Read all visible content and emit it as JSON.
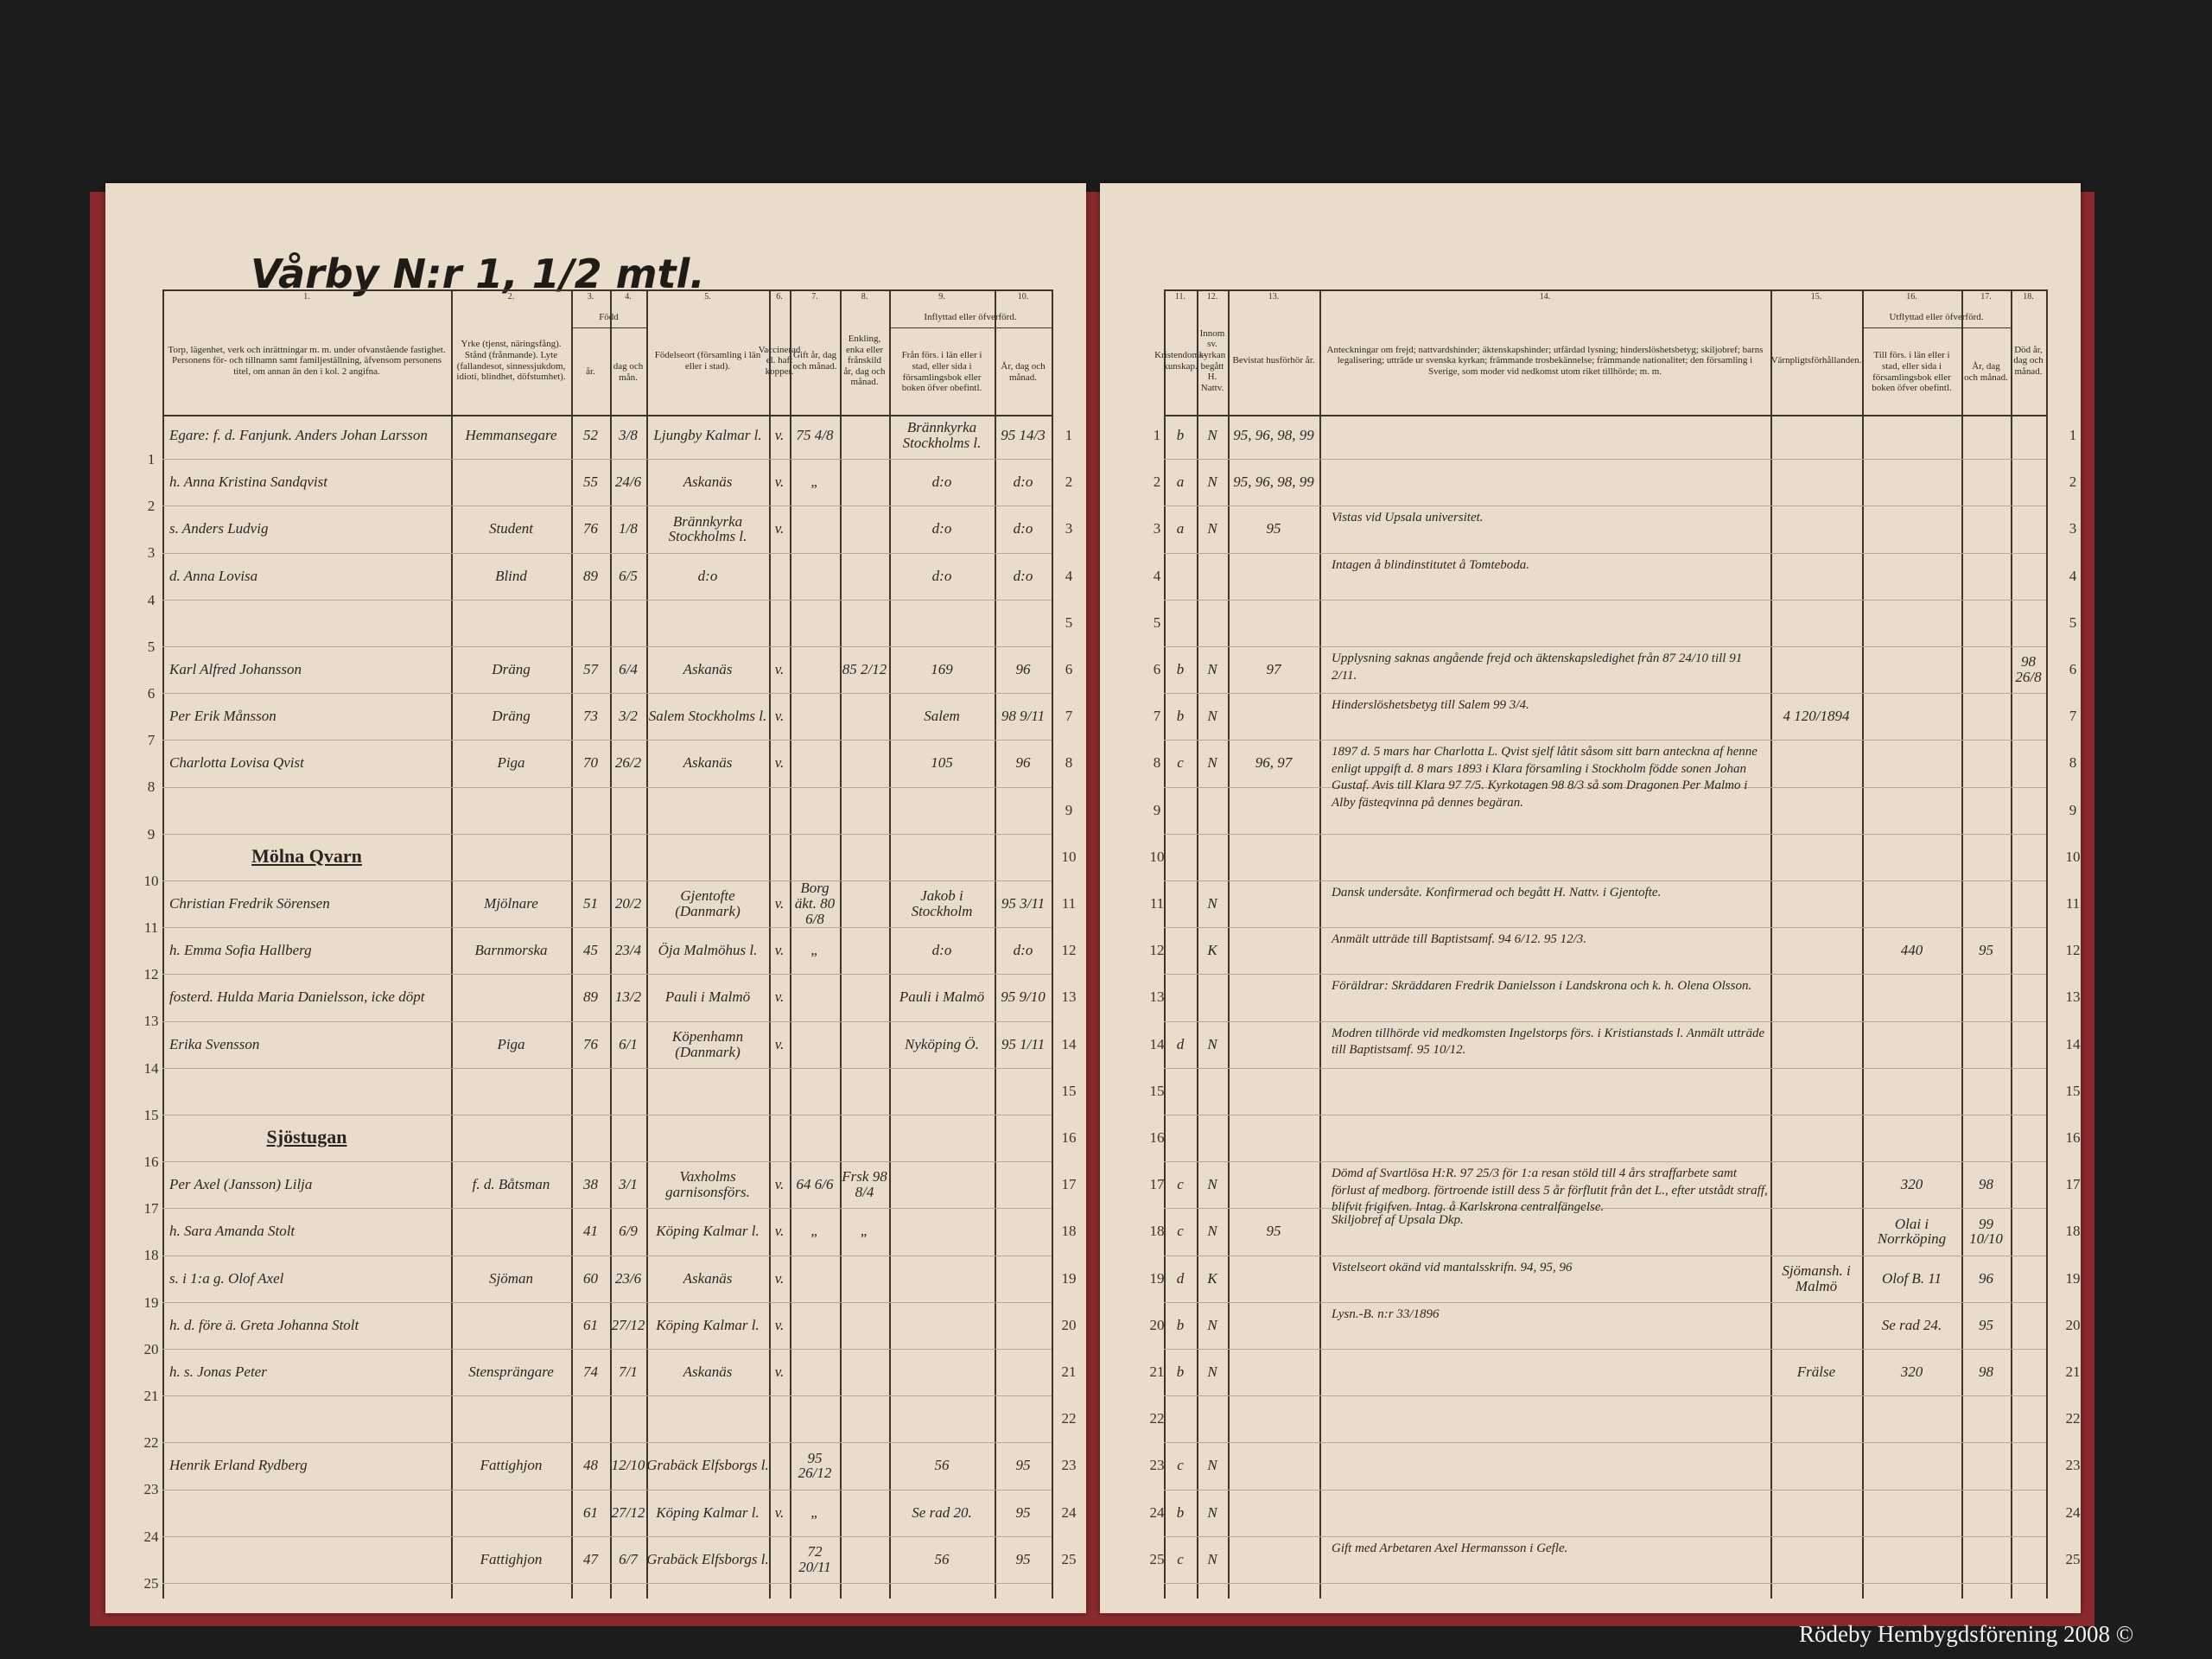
{
  "header": {
    "title": "Vårby N:r 1, 1/2 mtl."
  },
  "left_columns": [
    {
      "number": "1.",
      "label": "Torp, lägenhet, verk och inrättningar m. m. under ofvanstående fastighet. Personens för- och tillnamn samt familjeställning, äfvensom personens titel, om annan än den i kol. 2 angifna."
    },
    {
      "number": "2.",
      "label": "Yrke (tjenst, näringsfång). Stånd (frånmande). Lyte (fallandesot, sinnessjukdom, idioti, blindhet, döfstumhet)."
    },
    {
      "number": "3.",
      "group": "Född",
      "label": "år."
    },
    {
      "number": "4.",
      "label": "dag och mån."
    },
    {
      "number": "5.",
      "label": "Födelseort (församling i län eller i stad)."
    },
    {
      "number": "6.",
      "label": "Vaccinerad el. haft kopper."
    },
    {
      "number": "7.",
      "label": "Gift år, dag och månad."
    },
    {
      "number": "8.",
      "label": "Enkling, enka eller frånskild år, dag och månad."
    },
    {
      "number": "9.",
      "group": "Inflyttad eller öfverförd.",
      "label": "Från förs. i län eller i stad, eller sida i församlingsbok eller boken öfver obefintl."
    },
    {
      "number": "10.",
      "label": "År, dag och månad."
    }
  ],
  "right_columns": [
    {
      "number": "11.",
      "label": "Kristendoms-kunskap."
    },
    {
      "number": "12.",
      "label": "Innom sv. kyrkan begått H. Nattv."
    },
    {
      "number": "13.",
      "label": "Bevistat husförhör år."
    },
    {
      "number": "14.",
      "label": "Anteckningar om frejd; nattvardshinder; äktenskapshinder; utfärdad lysning; hinderslöshetsbetyg; skiljobref; barns legalisering; utträde ur svenska kyrkan; främmande trosbekännelse; främmande nationalitet; den församling i Sverige, som moder vid nedkomst utom riket tillhörde; m. m."
    },
    {
      "number": "15.",
      "label": "Värnpligtsförhållanden."
    },
    {
      "number": "16.",
      "group": "Utflyttad eller öfverförd.",
      "label": "Till förs. i län eller i stad, eller sida i församlingsbok eller boken öfver obefintl."
    },
    {
      "number": "17.",
      "label": "År, dag och månad."
    },
    {
      "number": "18.",
      "label": "Död år, dag och månad."
    }
  ],
  "rows": [
    {
      "number": "1",
      "name": "Egare: f. d. Fanjunk. Anders Johan Larsson",
      "occupation": "Hemmansegare",
      "year": "52",
      "day": "3/8",
      "birthplace": "Ljungby Kalmar l.",
      "vaccinated": "v.",
      "married": "75 4/8",
      "moved_from": "Brännkyrka Stockholms l.",
      "moved_date": "95 14/3",
      "catechism": "b",
      "communion": "N",
      "hearings": "95, 96, 98, 99"
    },
    {
      "number": "2",
      "name": "h. Anna Kristina Sandqvist",
      "year": "55",
      "day": "24/6",
      "birthplace": "Askanäs",
      "vaccinated": "v.",
      "married": "„",
      "moved_from": "d:o",
      "moved_date": "d:o",
      "catechism": "a",
      "communion": "N",
      "hearings": "95, 96, 98, 99"
    },
    {
      "number": "3",
      "name": "s. Anders Ludvig",
      "occupation": "Student",
      "year": "76",
      "day": "1/8",
      "birthplace": "Brännkyrka Stockholms l.",
      "vaccinated": "v.",
      "moved_from": "d:o",
      "moved_date": "d:o",
      "catechism": "a",
      "communion": "N",
      "hearings": "95",
      "notes": "Vistas vid Upsala universitet."
    },
    {
      "number": "4",
      "name": "d. Anna Lovisa",
      "occupation": "Blind",
      "year": "89",
      "day": "6/5",
      "birthplace": "d:o",
      "moved_from": "d:o",
      "moved_date": "d:o",
      "notes": "Intagen å blindinstitutet å Tomteboda."
    },
    {
      "number": "5"
    },
    {
      "number": "6",
      "name": "Karl Alfred Johansson",
      "occupation": "Dräng",
      "year": "57",
      "day": "6/4",
      "birthplace": "Askanäs",
      "vaccinated": "v.",
      "widowed": "85 2/12",
      "moved_from": "169",
      "moved_date": "96",
      "catechism": "b",
      "communion": "N",
      "hearings": "97",
      "notes": "Upplysning saknas angående frejd och äktenskapsledighet från 87 24/10 till 91 2/11.",
      "died": "98 26/8"
    },
    {
      "number": "7",
      "name": "Per Erik Månsson",
      "occupation": "Dräng",
      "year": "73",
      "day": "3/2",
      "birthplace": "Salem Stockholms l.",
      "vaccinated": "v.",
      "moved_from": "Salem",
      "moved_date": "98 9/11",
      "catechism": "b",
      "communion": "N",
      "notes": "Hinderslöshetsbetyg till Salem 99 3/4.",
      "military": "4 120/1894"
    },
    {
      "number": "8",
      "name": "Charlotta Lovisa Qvist",
      "occupation": "Piga",
      "year": "70",
      "day": "26/2",
      "birthplace": "Askanäs",
      "vaccinated": "v.",
      "moved_from": "105",
      "moved_date": "96",
      "catechism": "c",
      "communion": "N",
      "hearings": "96, 97",
      "notes": "1897 d. 5 mars har Charlotta L. Qvist sjelf låtit såsom sitt barn anteckna af henne enligt uppgift d. 8 mars 1893 i Klara församling i Stockholm födde sonen Johan Gustaf. Avis till Klara 97 7/5. Kyrkotagen 98 8/3 så som Dragonen Per Malmo i Alby fästeqvinna på dennes begäran."
    },
    {
      "number": "9"
    },
    {
      "number": "10",
      "heading": "Mölna Qvarn"
    },
    {
      "number": "11",
      "name": "Christian Fredrik Sörensen",
      "occupation": "Mjölnare",
      "year": "51",
      "day": "20/2",
      "birthplace": "Gjentofte (Danmark)",
      "vaccinated": "v.",
      "married": "Borg äkt. 80 6/8",
      "moved_from": "Jakob i Stockholm",
      "moved_date": "95 3/11",
      "communion": "N",
      "notes": "Dansk undersåte. Konfirmerad och begått H. Nattv. i Gjentofte."
    },
    {
      "number": "12",
      "name": "h. Emma Sofia Hallberg",
      "occupation": "Barnmorska",
      "year": "45",
      "day": "23/4",
      "birthplace": "Öja Malmöhus l.",
      "vaccinated": "v.",
      "married": "„",
      "moved_from": "d:o",
      "moved_date": "d:o",
      "communion": "K",
      "notes": "Anmält utträde till Baptistsamf. 94 6/12. 95 12/3.",
      "moved_to": "440",
      "moved_out": "95"
    },
    {
      "number": "13",
      "name": "fosterd. Hulda Maria Danielsson, icke döpt",
      "year": "89",
      "day": "13/2",
      "birthplace": "Pauli i Malmö",
      "vaccinated": "v.",
      "moved_from": "Pauli i Malmö",
      "moved_date": "95 9/10",
      "notes": "Föräldrar: Skräddaren Fredrik Danielsson i Landskrona och k. h. Olena Olsson."
    },
    {
      "number": "14",
      "name": "Erika Svensson",
      "occupation": "Piga",
      "year": "76",
      "day": "6/1",
      "birthplace": "Köpenhamn (Danmark)",
      "vaccinated": "v.",
      "moved_from": "Nyköping Ö.",
      "moved_date": "95 1/11",
      "catechism": "d",
      "communion": "N",
      "notes": "Modren tillhörde vid medkomsten Ingelstorps förs. i Kristianstads l. Anmält utträde till Baptistsamf. 95 10/12."
    },
    {
      "number": "15"
    },
    {
      "number": "16",
      "heading": "Sjöstugan"
    },
    {
      "number": "17",
      "name": "Per Axel (Jansson) Lilja",
      "occupation": "f. d. Båtsman",
      "year": "38",
      "day": "3/1",
      "birthplace": "Vaxholms garnisonsförs.",
      "vaccinated": "v.",
      "married": "64 6/6",
      "widowed": "Frsk 98 8/4",
      "catechism": "c",
      "communion": "N",
      "notes": "Dömd af Svartlösa H:R. 97 25/3 för 1:a resan stöld till 4 års straffarbete samt förlust af medborg. förtroende istill dess 5 år förflutit från det L., efter utstådt straff, blifvit frigifven. Intag. å Karlskrona centralfängelse.",
      "moved_to": "320",
      "moved_out": "98"
    },
    {
      "number": "18",
      "name": "h. Sara Amanda Stolt",
      "year": "41",
      "day": "6/9",
      "birthplace": "Köping Kalmar l.",
      "vaccinated": "v.",
      "married": "„",
      "widowed": "„",
      "catechism": "c",
      "communion": "N",
      "hearings": "95",
      "notes": "Skiljobref af Upsala Dkp.",
      "moved_to": "Olai i Norrköping",
      "moved_out": "99 10/10"
    },
    {
      "number": "19",
      "name": "s. i 1:a g. Olof Axel",
      "occupation": "Sjöman",
      "year": "60",
      "day": "23/6",
      "birthplace": "Askanäs",
      "vaccinated": "v.",
      "catechism": "d",
      "communion": "K",
      "notes": "Vistelseort okänd vid mantalsskrifn. 94, 95, 96",
      "military": "Sjömansh. i Malmö",
      "moved_to": "Olof B. 11",
      "moved_out": "96"
    },
    {
      "number": "20",
      "name": "h. d. före ä. Greta Johanna Stolt",
      "year": "61",
      "day": "27/12",
      "birthplace": "Köping Kalmar l.",
      "vaccinated": "v.",
      "catechism": "b",
      "communion": "N",
      "notes": "Lysn.-B. n:r 33/1896",
      "moved_to": "Se rad 24.",
      "moved_out": "95"
    },
    {
      "number": "21",
      "name": "h. s. Jonas Peter",
      "occupation": "Stensprängare",
      "year": "74",
      "day": "7/1",
      "birthplace": "Askanäs",
      "vaccinated": "v.",
      "catechism": "b",
      "communion": "N",
      "military": "Frälse",
      "moved_to": "320",
      "moved_out": "98"
    },
    {
      "number": "22"
    },
    {
      "number": "23",
      "name": "Henrik Erland Rydberg",
      "occupation": "Fattighjon",
      "year": "48",
      "day": "12/10",
      "birthplace": "Grabäck Elfsborgs l.",
      "married": "95 26/12",
      "moved_from": "56",
      "moved_date": "95",
      "catechism": "c",
      "communion": "N"
    },
    {
      "number": "24",
      "year": "61",
      "day": "27/12",
      "birthplace": "Köping Kalmar l.",
      "vaccinated": "v.",
      "married": "„",
      "moved_from": "Se rad 20.",
      "moved_date": "95",
      "catechism": "b",
      "communion": "N"
    },
    {
      "number": "25",
      "occupation": "Fattighjon",
      "year": "47",
      "day": "6/7",
      "birthplace": "Grabäck Elfsborgs l.",
      "married": "72 20/11",
      "moved_from": "56",
      "moved_date": "95",
      "catechism": "c",
      "communion": "N",
      "notes": "Gift med Arbetaren Axel Hermansson i Gefle."
    }
  ],
  "footer": {
    "credit": "Rödeby Hembygdsförening 2008 ©"
  }
}
